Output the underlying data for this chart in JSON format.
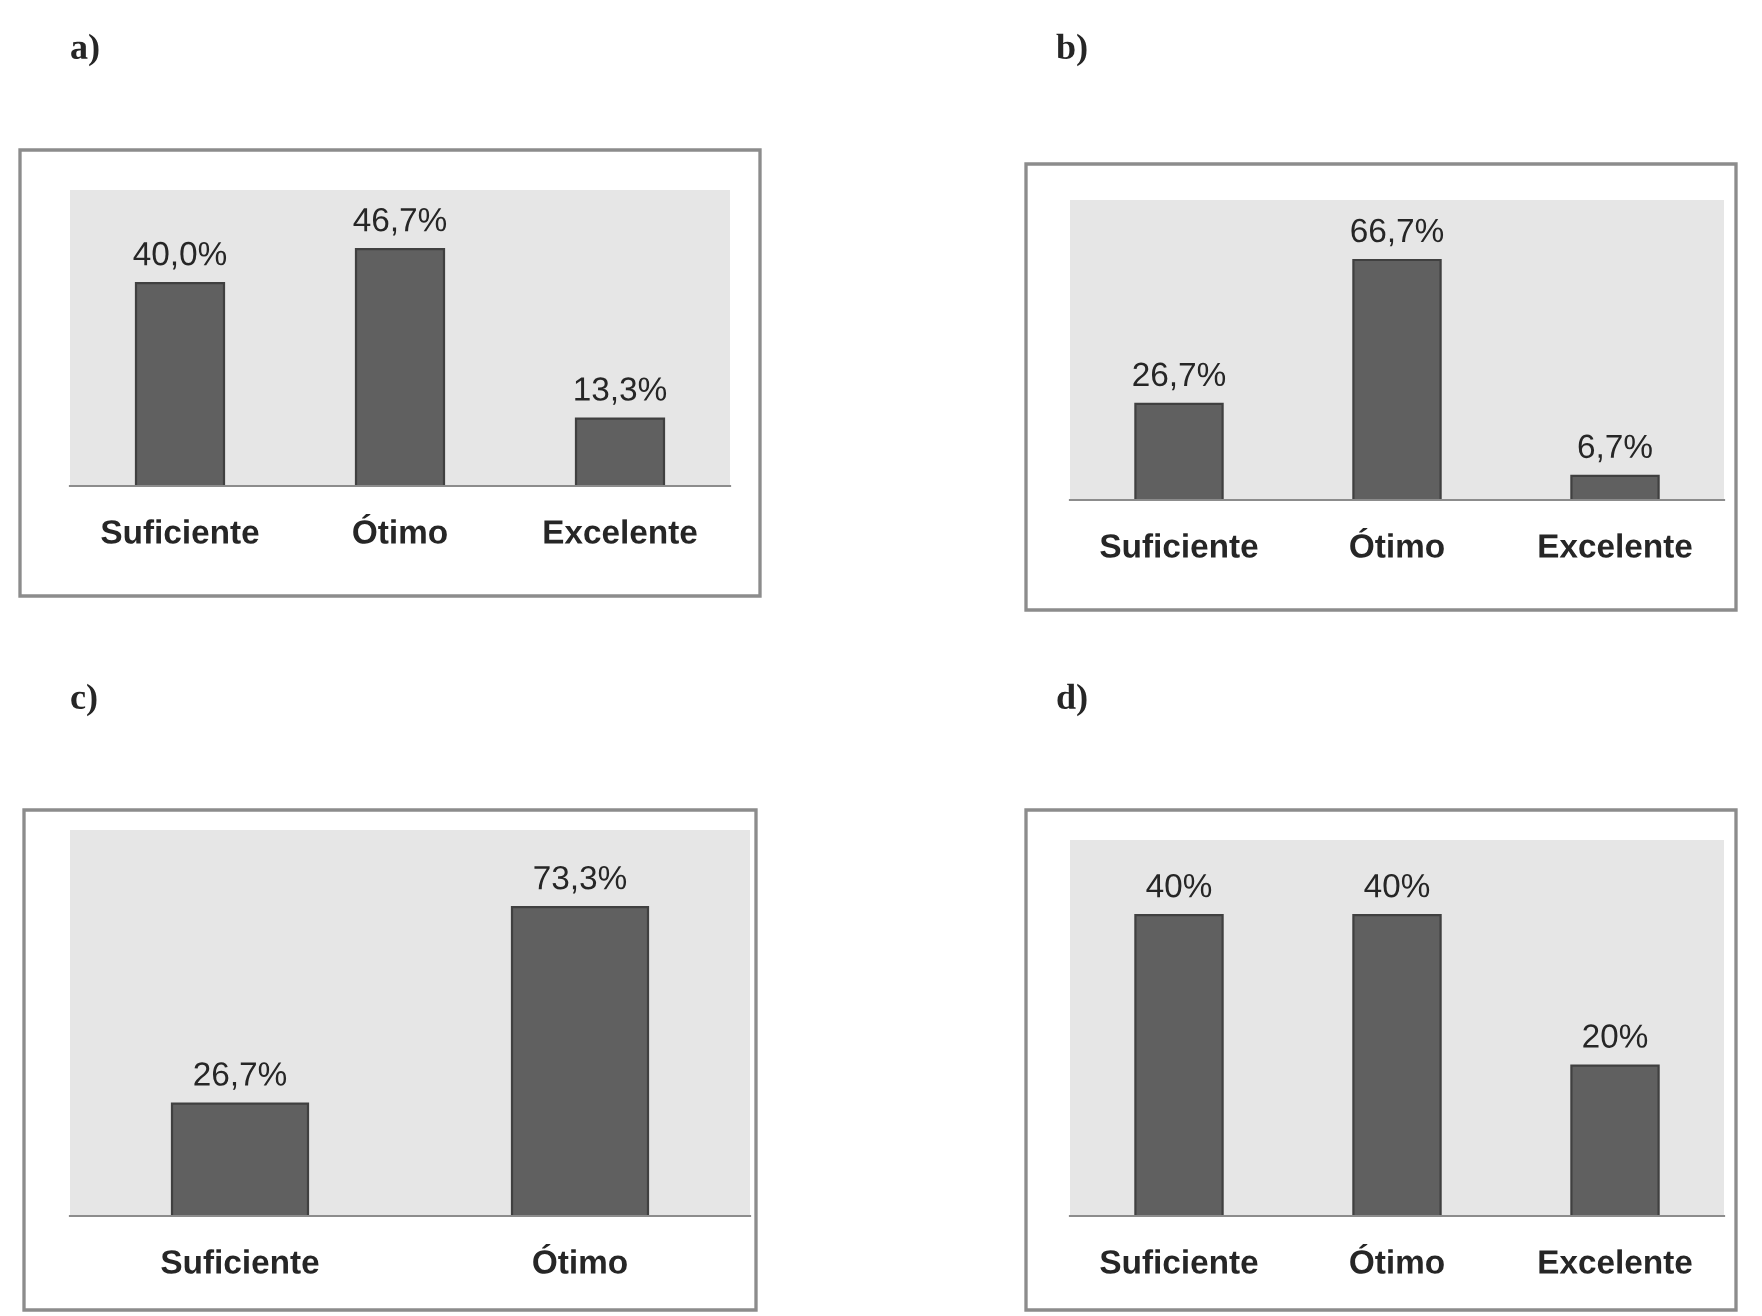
{
  "chart_data": [
    {
      "type": "bar",
      "title": "a)",
      "categories": [
        "Suficiente",
        "Ótimo",
        "Excelente"
      ],
      "values": [
        40.0,
        46.7,
        13.3
      ],
      "value_labels": [
        "40,0%",
        "46,7%",
        "13,3%"
      ],
      "color": "#606060"
    },
    {
      "type": "bar",
      "title": "b)",
      "categories": [
        "Suficiente",
        "Ótimo",
        "Excelente"
      ],
      "values": [
        26.7,
        66.7,
        6.7
      ],
      "value_labels": [
        "26,7%",
        "66,7%",
        "6,7%"
      ],
      "color": "#606060"
    },
    {
      "type": "bar",
      "title": "c)",
      "categories": [
        "Suficiente",
        "Ótimo"
      ],
      "values": [
        26.7,
        73.3
      ],
      "value_labels": [
        "26,7%",
        "73,3%"
      ],
      "color": "#606060"
    },
    {
      "type": "bar",
      "title": "d)",
      "categories": [
        "Suficiente",
        "Ótimo",
        "Excelente"
      ],
      "values": [
        40,
        40,
        20
      ],
      "value_labels": [
        "40%",
        "40%",
        "20%"
      ],
      "color": "#606060"
    }
  ]
}
